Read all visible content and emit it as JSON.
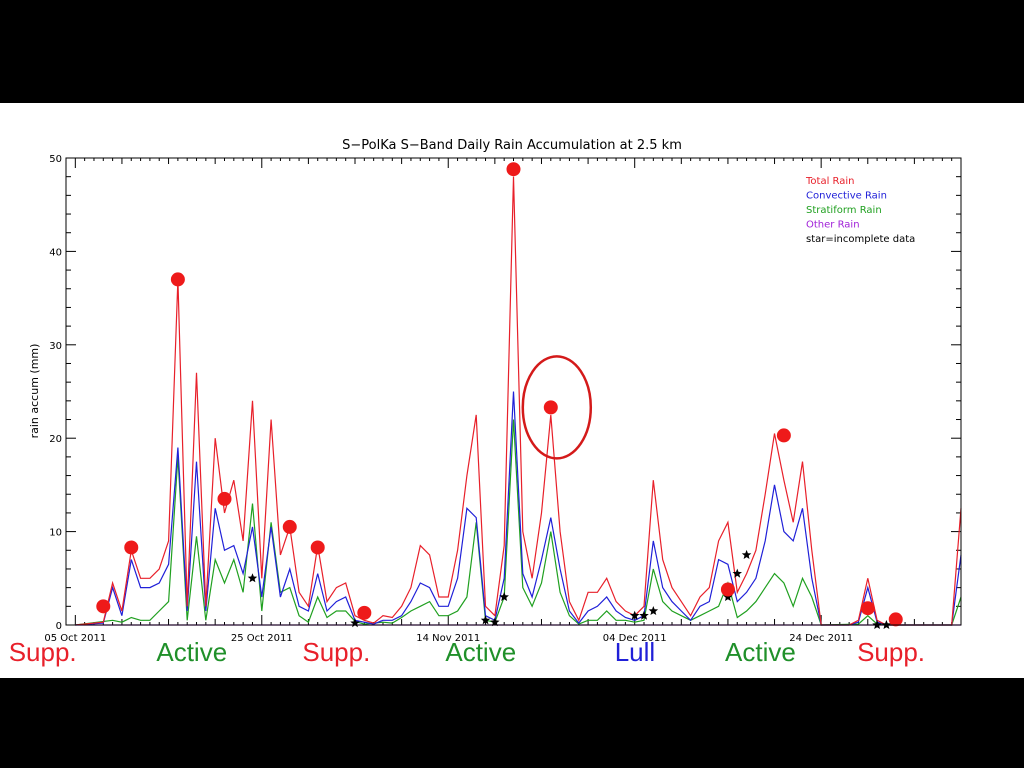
{
  "chart_data": {
    "type": "line",
    "title": "S−PolKa S−Band Daily Rain Accumulation at 2.5 km",
    "xlabel": "",
    "ylabel": "rain accum (mm)",
    "ylim": [
      0,
      50
    ],
    "y_ticks": [
      "0",
      "10",
      "20",
      "30",
      "40",
      "50"
    ],
    "x_ticks": [
      {
        "label": "05 Oct 2011",
        "day": 0
      },
      {
        "label": "25 Oct 2011",
        "day": 20
      },
      {
        "label": "14 Nov 2011",
        "day": 40
      },
      {
        "label": "04 Dec 2011",
        "day": 60
      },
      {
        "label": "24 Dec 2011",
        "day": 80
      }
    ],
    "grid": false,
    "legend_position": "top-right",
    "series": [
      {
        "name": "Total Rain",
        "color": "#e8202a",
        "points": [
          [
            0,
            0
          ],
          [
            3,
            0.3
          ],
          [
            4,
            4.5
          ],
          [
            5,
            1.5
          ],
          [
            6,
            8
          ],
          [
            7,
            5
          ],
          [
            8,
            5
          ],
          [
            9,
            6
          ],
          [
            10,
            9
          ],
          [
            11,
            37
          ],
          [
            12,
            2
          ],
          [
            13,
            27
          ],
          [
            14,
            2
          ],
          [
            15,
            20
          ],
          [
            16,
            12
          ],
          [
            17,
            15.5
          ],
          [
            18,
            9
          ],
          [
            19,
            24
          ],
          [
            20,
            5
          ],
          [
            21,
            22
          ],
          [
            22,
            7.5
          ],
          [
            23,
            10.5
          ],
          [
            24,
            3.5
          ],
          [
            25,
            2
          ],
          [
            26,
            8.5
          ],
          [
            27,
            2.5
          ],
          [
            28,
            4
          ],
          [
            29,
            4.5
          ],
          [
            30,
            1
          ],
          [
            31,
            0.5
          ],
          [
            32,
            0.2
          ],
          [
            33,
            1
          ],
          [
            34,
            0.8
          ],
          [
            35,
            2
          ],
          [
            36,
            4
          ],
          [
            37,
            8.5
          ],
          [
            38,
            7.5
          ],
          [
            39,
            3
          ],
          [
            40,
            3
          ],
          [
            41,
            8
          ],
          [
            42,
            16
          ],
          [
            43,
            22.5
          ],
          [
            44,
            2
          ],
          [
            45,
            1
          ],
          [
            46,
            8.5
          ],
          [
            47,
            48
          ],
          [
            48,
            10
          ],
          [
            49,
            5
          ],
          [
            50,
            12
          ],
          [
            51,
            22.5
          ],
          [
            52,
            10
          ],
          [
            53,
            2.5
          ],
          [
            54,
            0.5
          ],
          [
            55,
            3.5
          ],
          [
            56,
            3.5
          ],
          [
            57,
            5
          ],
          [
            58,
            2.5
          ],
          [
            59,
            1.5
          ],
          [
            60,
            1
          ],
          [
            61,
            2
          ],
          [
            62,
            15.5
          ],
          [
            63,
            7
          ],
          [
            64,
            4
          ],
          [
            65,
            2.5
          ],
          [
            66,
            1
          ],
          [
            67,
            3
          ],
          [
            68,
            4
          ],
          [
            69,
            9
          ],
          [
            70,
            11
          ],
          [
            71,
            3.5
          ],
          [
            72,
            5.5
          ],
          [
            73,
            8
          ],
          [
            74,
            14
          ],
          [
            75,
            20.5
          ],
          [
            76,
            15.5
          ],
          [
            77,
            11
          ],
          [
            78,
            17.5
          ],
          [
            79,
            8
          ],
          [
            80,
            0
          ],
          [
            82,
            0
          ],
          [
            83,
            0
          ],
          [
            84,
            0.5
          ],
          [
            85,
            5
          ],
          [
            86,
            0.5
          ],
          [
            87,
            0
          ],
          [
            94,
            0
          ],
          [
            95,
            12.5
          ]
        ]
      },
      {
        "name": "Convective Rain",
        "color": "#2020d8",
        "points": [
          [
            0,
            0
          ],
          [
            3,
            0.2
          ],
          [
            4,
            4
          ],
          [
            5,
            1
          ],
          [
            6,
            7
          ],
          [
            7,
            4
          ],
          [
            8,
            4
          ],
          [
            9,
            4.5
          ],
          [
            10,
            6.5
          ],
          [
            11,
            19
          ],
          [
            12,
            1.5
          ],
          [
            13,
            17.5
          ],
          [
            14,
            1.5
          ],
          [
            15,
            12.5
          ],
          [
            16,
            8
          ],
          [
            17,
            8.5
          ],
          [
            18,
            5.5
          ],
          [
            19,
            10.5
          ],
          [
            20,
            3
          ],
          [
            21,
            10.5
          ],
          [
            22,
            3
          ],
          [
            23,
            6
          ],
          [
            24,
            2
          ],
          [
            25,
            1.5
          ],
          [
            26,
            5.5
          ],
          [
            27,
            1.5
          ],
          [
            28,
            2.5
          ],
          [
            29,
            3
          ],
          [
            30,
            0.5
          ],
          [
            31,
            0.3
          ],
          [
            32,
            0.1
          ],
          [
            33,
            0.5
          ],
          [
            34,
            0.5
          ],
          [
            35,
            1
          ],
          [
            36,
            2.5
          ],
          [
            37,
            4.5
          ],
          [
            38,
            4
          ],
          [
            39,
            2
          ],
          [
            40,
            2
          ],
          [
            41,
            5
          ],
          [
            42,
            12.5
          ],
          [
            43,
            11.5
          ],
          [
            44,
            1
          ],
          [
            45,
            0.5
          ],
          [
            46,
            5
          ],
          [
            47,
            25
          ],
          [
            48,
            5.5
          ],
          [
            49,
            3
          ],
          [
            50,
            7
          ],
          [
            51,
            11.5
          ],
          [
            52,
            6
          ],
          [
            53,
            1.5
          ],
          [
            54,
            0.2
          ],
          [
            55,
            1.5
          ],
          [
            56,
            2
          ],
          [
            57,
            3
          ],
          [
            58,
            1.5
          ],
          [
            59,
            0.8
          ],
          [
            60,
            0.5
          ],
          [
            61,
            1
          ],
          [
            62,
            9
          ],
          [
            63,
            4
          ],
          [
            64,
            2.5
          ],
          [
            65,
            1.5
          ],
          [
            66,
            0.5
          ],
          [
            67,
            2
          ],
          [
            68,
            2.5
          ],
          [
            69,
            7
          ],
          [
            70,
            6.5
          ],
          [
            71,
            2.5
          ],
          [
            72,
            3.5
          ],
          [
            73,
            5
          ],
          [
            74,
            9
          ],
          [
            75,
            15
          ],
          [
            76,
            10
          ],
          [
            77,
            9
          ],
          [
            78,
            12.5
          ],
          [
            79,
            5
          ],
          [
            80,
            0
          ],
          [
            82,
            0
          ],
          [
            83,
            0
          ],
          [
            84,
            0.3
          ],
          [
            85,
            4
          ],
          [
            86,
            0.3
          ],
          [
            87,
            0
          ],
          [
            94,
            0
          ],
          [
            95,
            7.5
          ]
        ]
      },
      {
        "name": "Stratiform Rain",
        "color": "#20a020",
        "points": [
          [
            0,
            0
          ],
          [
            4,
            0.5
          ],
          [
            5,
            0.3
          ],
          [
            6,
            0.8
          ],
          [
            7,
            0.5
          ],
          [
            8,
            0.5
          ],
          [
            9,
            1.5
          ],
          [
            10,
            2.5
          ],
          [
            11,
            18
          ],
          [
            12,
            0.5
          ],
          [
            13,
            9.5
          ],
          [
            14,
            0.5
          ],
          [
            15,
            7
          ],
          [
            16,
            4.5
          ],
          [
            17,
            7
          ],
          [
            18,
            3.5
          ],
          [
            19,
            13
          ],
          [
            20,
            1.5
          ],
          [
            21,
            11
          ],
          [
            22,
            3.5
          ],
          [
            23,
            4
          ],
          [
            24,
            1
          ],
          [
            25,
            0.3
          ],
          [
            26,
            3
          ],
          [
            27,
            0.8
          ],
          [
            28,
            1.5
          ],
          [
            29,
            1.5
          ],
          [
            30,
            0.4
          ],
          [
            31,
            0.1
          ],
          [
            33,
            0.3
          ],
          [
            34,
            0.2
          ],
          [
            35,
            0.8
          ],
          [
            36,
            1.5
          ],
          [
            37,
            2
          ],
          [
            38,
            2.5
          ],
          [
            39,
            1
          ],
          [
            40,
            1
          ],
          [
            41,
            1.5
          ],
          [
            42,
            3
          ],
          [
            43,
            11
          ],
          [
            44,
            0.5
          ],
          [
            45,
            0.3
          ],
          [
            46,
            3
          ],
          [
            47,
            22
          ],
          [
            48,
            4
          ],
          [
            49,
            2
          ],
          [
            50,
            4.5
          ],
          [
            51,
            10
          ],
          [
            52,
            3.5
          ],
          [
            53,
            1
          ],
          [
            54,
            0.1
          ],
          [
            55,
            0.5
          ],
          [
            56,
            0.5
          ],
          [
            57,
            1.5
          ],
          [
            58,
            0.5
          ],
          [
            59,
            0.5
          ],
          [
            60,
            0.3
          ],
          [
            61,
            0.5
          ],
          [
            62,
            6
          ],
          [
            63,
            2.5
          ],
          [
            64,
            1.5
          ],
          [
            65,
            1
          ],
          [
            66,
            0.5
          ],
          [
            67,
            1
          ],
          [
            68,
            1.5
          ],
          [
            69,
            2
          ],
          [
            70,
            4.5
          ],
          [
            71,
            0.8
          ],
          [
            72,
            1.5
          ],
          [
            73,
            2.5
          ],
          [
            74,
            4
          ],
          [
            75,
            5.5
          ],
          [
            76,
            4.5
          ],
          [
            77,
            2
          ],
          [
            78,
            5
          ],
          [
            79,
            3
          ],
          [
            80,
            0
          ],
          [
            84,
            0.1
          ],
          [
            85,
            1
          ],
          [
            86,
            0.1
          ],
          [
            87,
            0
          ],
          [
            94,
            0
          ],
          [
            95,
            3
          ]
        ]
      },
      {
        "name": "Other Rain",
        "color": "#a020d8",
        "points": [
          [
            0,
            0
          ],
          [
            95,
            0
          ]
        ]
      }
    ],
    "legend_note": "star=incomplete data",
    "incomplete_days": [
      [
        19,
        5
      ],
      [
        30,
        0.2
      ],
      [
        44,
        0.5
      ],
      [
        45,
        0.3
      ],
      [
        46,
        3
      ],
      [
        60,
        1
      ],
      [
        61,
        1
      ],
      [
        62,
        1.5
      ],
      [
        70,
        3
      ],
      [
        71,
        5.5
      ],
      [
        72,
        7.5
      ],
      [
        86,
        0
      ],
      [
        87,
        0
      ]
    ],
    "highlighted_days": [
      [
        3,
        2
      ],
      [
        6,
        8.3
      ],
      [
        11,
        37
      ],
      [
        16,
        13.5
      ],
      [
        23,
        10.5
      ],
      [
        26,
        8.3
      ],
      [
        31,
        1.3
      ],
      [
        47,
        48.8
      ],
      [
        51,
        23.3
      ],
      [
        70,
        3.8
      ],
      [
        76,
        20.3
      ],
      [
        85,
        1.8
      ],
      [
        88,
        0.6
      ]
    ],
    "circled_day": [
      51,
      23.3
    ],
    "phases": [
      {
        "label": "Supp.",
        "color": "#e8202a",
        "day": -3.5
      },
      {
        "label": "Active",
        "color": "#20902a",
        "day": 12.5
      },
      {
        "label": "Supp.",
        "color": "#e8202a",
        "day": 28
      },
      {
        "label": "Active",
        "color": "#20902a",
        "day": 43.5
      },
      {
        "label": "Lull",
        "color": "#2020d8",
        "day": 60
      },
      {
        "label": "Active",
        "color": "#20902a",
        "day": 73.5
      },
      {
        "label": "Supp.",
        "color": "#e8202a",
        "day": 87.5
      }
    ]
  }
}
